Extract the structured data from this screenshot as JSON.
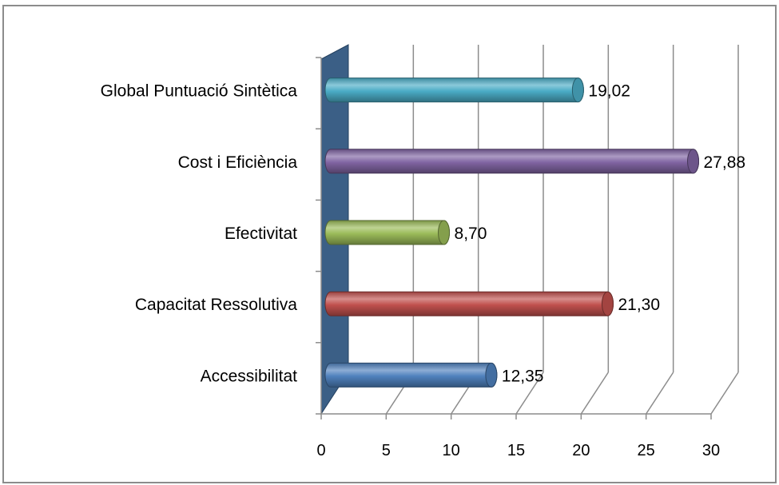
{
  "chart_data": {
    "type": "bar",
    "orientation": "horizontal",
    "style": "3d-cylinder",
    "categories": [
      "Accessibilitat",
      "Capacitat Ressolutiva",
      "Efectivitat",
      "Cost i Eficiència",
      "Global Puntuació Sintètica"
    ],
    "values": [
      12.35,
      21.3,
      8.7,
      27.88,
      19.02
    ],
    "data_labels": [
      "12,35",
      "21,30",
      "8,70",
      "27,88",
      "19,02"
    ],
    "colors": [
      "#4f81bd",
      "#c0504d",
      "#9bbb59",
      "#8064a2",
      "#4bacc6"
    ],
    "xlim": [
      0,
      30
    ],
    "xticks": [
      "0",
      "5",
      "10",
      "15",
      "20",
      "25",
      "30"
    ],
    "title": "",
    "xlabel": "",
    "ylabel": "",
    "grid": true,
    "legend": "none",
    "wall_color": "#3b5f86"
  }
}
